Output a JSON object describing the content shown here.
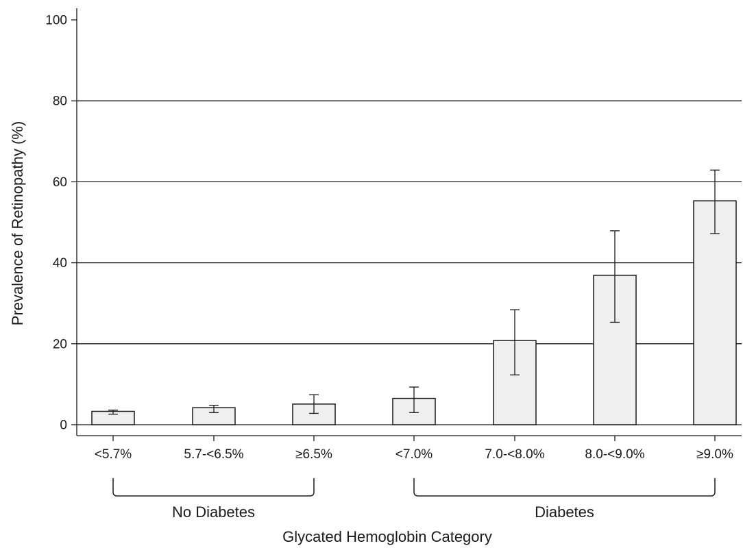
{
  "chart_data": {
    "type": "bar",
    "title": "",
    "xlabel": "Glycated Hemoglobin Category",
    "ylabel": "Prevalence of Retinopathy (%)",
    "ylim": [
      0,
      100
    ],
    "yticks": [
      0,
      20,
      40,
      60,
      80,
      100
    ],
    "grid": true,
    "categories": [
      "<5.7%",
      "5.7-<6.5%",
      "≥6.5%",
      "<7.0%",
      "7.0-<8.0%",
      "8.0-<9.0%",
      "≥9.0%"
    ],
    "values": [
      3.3,
      4.2,
      5.1,
      6.5,
      20.8,
      36.9,
      55.3
    ],
    "error_low": [
      2.6,
      3.0,
      2.8,
      3.0,
      12.3,
      25.3,
      47.2
    ],
    "error_high": [
      3.6,
      4.8,
      7.4,
      9.3,
      28.4,
      47.9,
      62.9
    ],
    "groups": [
      {
        "label": "No Diabetes",
        "start": 0,
        "end": 2
      },
      {
        "label": "Diabetes",
        "start": 3,
        "end": 6
      }
    ],
    "colors": {
      "bar_fill": "#efefef",
      "bar_stroke": "#1a1a1a",
      "axis": "#1a1a1a",
      "grid": "#1a1a1a"
    }
  }
}
